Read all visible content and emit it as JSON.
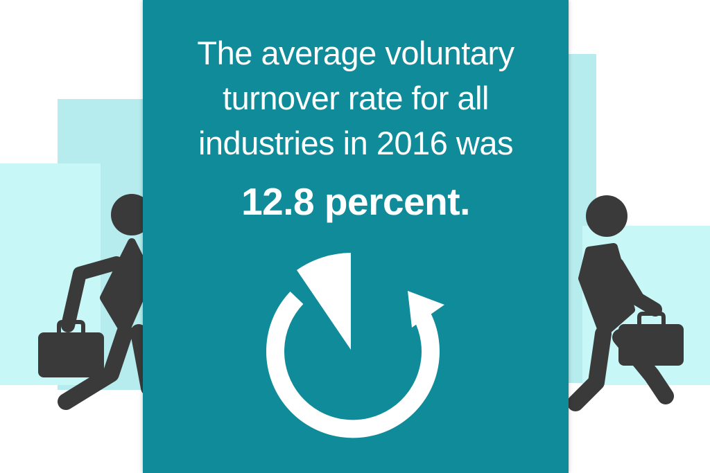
{
  "headline": {
    "lines": [
      "The average voluntary",
      "turnover rate for all",
      "industries in 2016 was"
    ],
    "highlight": "12.8 percent."
  },
  "colors": {
    "card": "#0f8b99",
    "background_light": "#b7ecee",
    "background_lighter": "#c7f7f7",
    "figure": "#3a3a3a",
    "text": "#ffffff"
  },
  "icons": {
    "center": "circular-arrow-refresh-icon",
    "left_figure": "person-walking-with-briefcase-icon",
    "right_figure": "person-walking-with-briefcase-icon"
  }
}
